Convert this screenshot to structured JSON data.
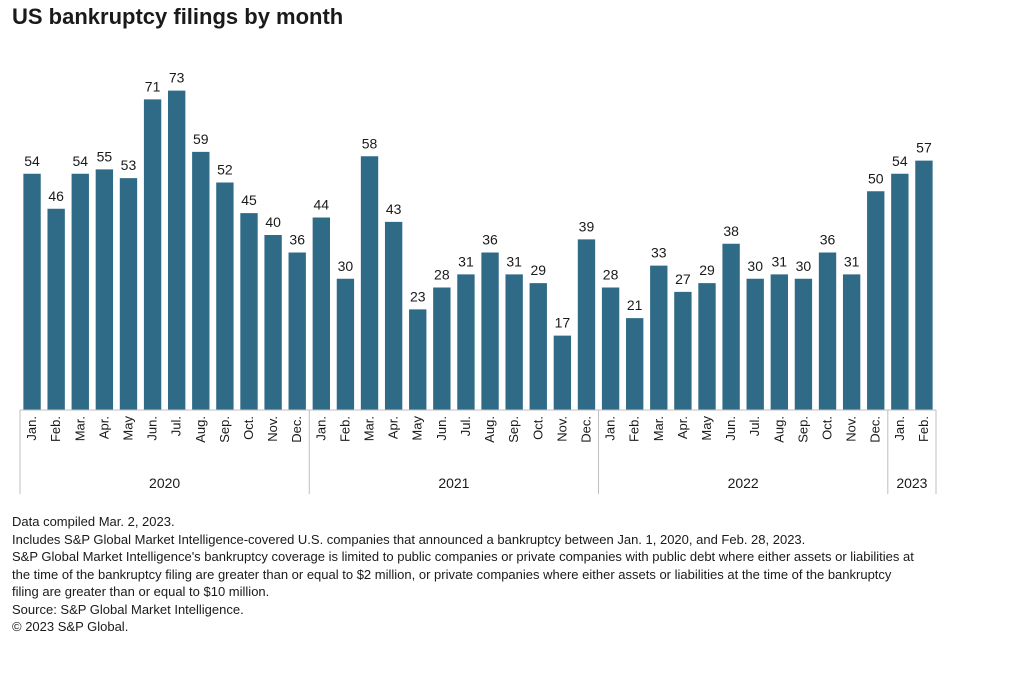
{
  "chart_data": {
    "type": "bar",
    "title": "US bankruptcy filings by month",
    "xlabel": "",
    "ylabel": "",
    "ylim": [
      0,
      80
    ],
    "bar_color": "#2f6b87",
    "categories": [
      "Jan.",
      "Feb.",
      "Mar.",
      "Apr.",
      "May",
      "Jun.",
      "Jul.",
      "Aug.",
      "Sep.",
      "Oct.",
      "Nov.",
      "Dec.",
      "Jan.",
      "Feb.",
      "Mar.",
      "Apr.",
      "May",
      "Jun.",
      "Jul.",
      "Aug.",
      "Sep.",
      "Oct.",
      "Nov.",
      "Dec.",
      "Jan.",
      "Feb.",
      "Mar.",
      "Apr.",
      "May",
      "Jun.",
      "Jul.",
      "Aug.",
      "Sep.",
      "Oct.",
      "Nov.",
      "Dec.",
      "Jan.",
      "Feb."
    ],
    "values": [
      54,
      46,
      54,
      55,
      53,
      71,
      73,
      59,
      52,
      45,
      40,
      36,
      44,
      30,
      58,
      43,
      23,
      28,
      31,
      36,
      31,
      29,
      17,
      39,
      28,
      21,
      33,
      27,
      29,
      38,
      30,
      31,
      30,
      36,
      31,
      50,
      54,
      57
    ],
    "groups": [
      {
        "label": "2020",
        "count": 12
      },
      {
        "label": "2021",
        "count": 12
      },
      {
        "label": "2022",
        "count": 12
      },
      {
        "label": "2023",
        "count": 2
      }
    ]
  },
  "notes": [
    "Data compiled Mar. 2, 2023.",
    "Includes S&P Global Market Intelligence-covered U.S. companies that announced a bankruptcy between Jan. 1, 2020, and Feb. 28, 2023.",
    "S&P Global Market Intelligence's bankruptcy coverage is limited to public companies or private companies with public debt where either assets or liabilities at the time of the bankruptcy filing are greater than or equal to $2 million, or private companies where either assets or liabilities at the time of the bankruptcy filing are greater than or equal to $10 million.",
    "Source: S&P Global Market Intelligence.",
    "© 2023 S&P Global."
  ]
}
